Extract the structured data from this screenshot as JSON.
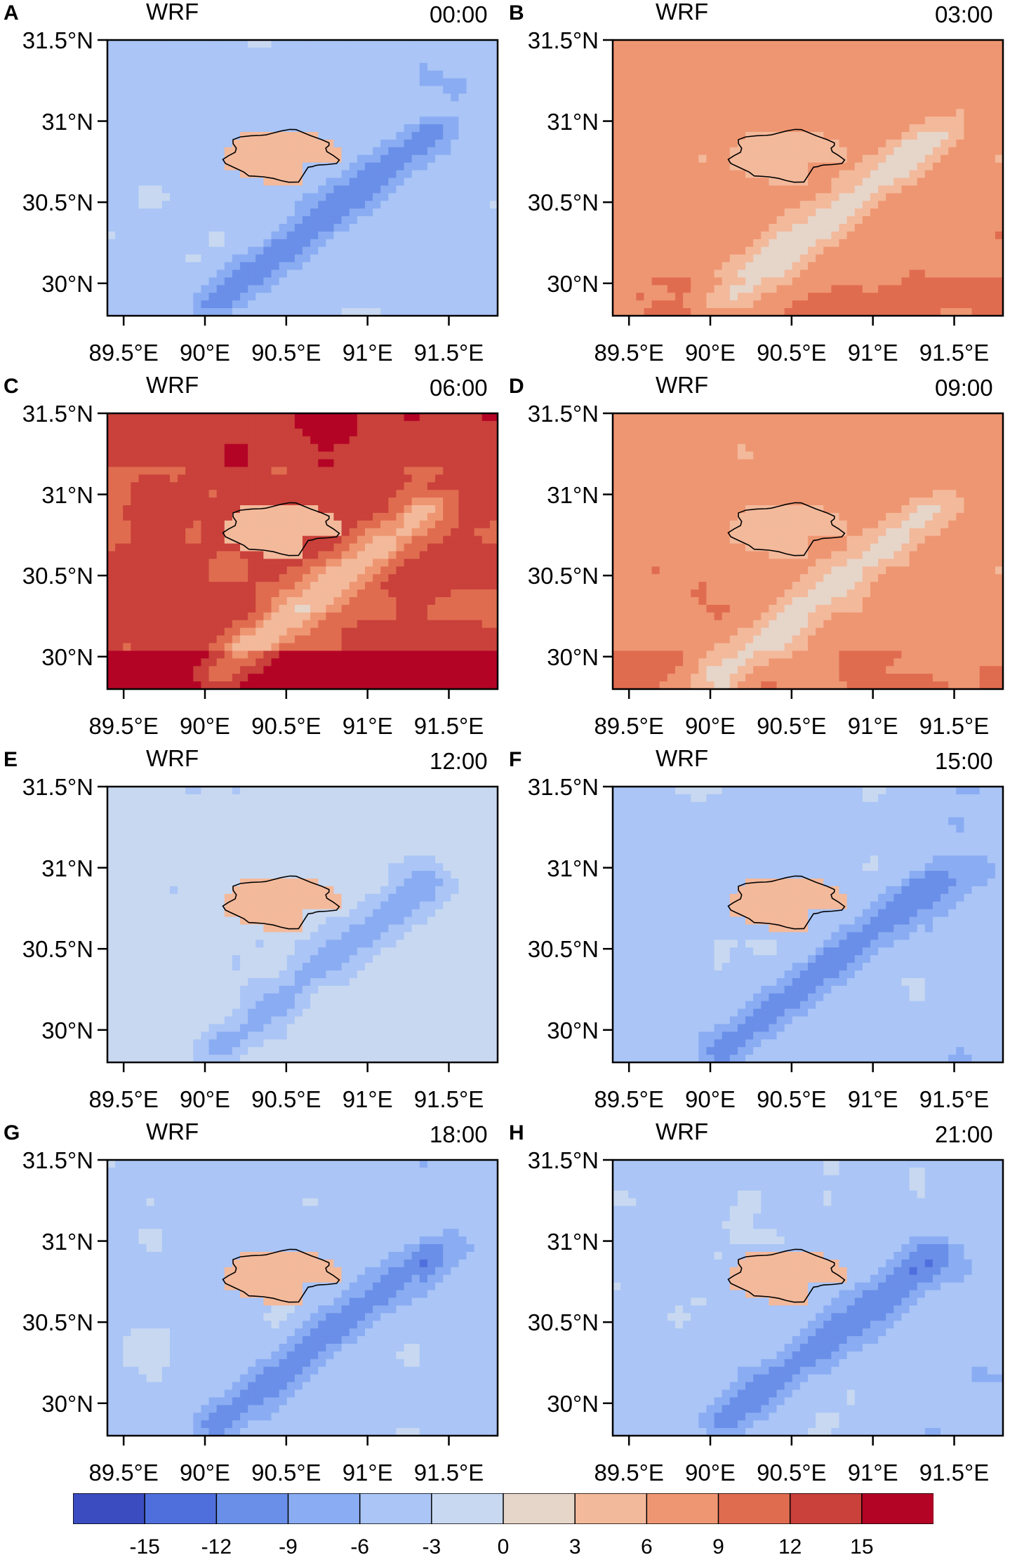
{
  "chart_data": {
    "type": "heatmap",
    "panels": [
      {
        "label": "A",
        "title": "WRF",
        "time": "00:00",
        "regime": "cool"
      },
      {
        "label": "B",
        "title": "WRF",
        "time": "03:00",
        "regime": "warm"
      },
      {
        "label": "C",
        "title": "WRF",
        "time": "06:00",
        "regime": "hot"
      },
      {
        "label": "D",
        "title": "WRF",
        "time": "09:00",
        "regime": "warm"
      },
      {
        "label": "E",
        "title": "WRF",
        "time": "12:00",
        "regime": "mild"
      },
      {
        "label": "F",
        "title": "WRF",
        "time": "15:00",
        "regime": "cool"
      },
      {
        "label": "G",
        "title": "WRF",
        "time": "18:00",
        "regime": "cool"
      },
      {
        "label": "H",
        "title": "WRF",
        "time": "21:00",
        "regime": "cool"
      }
    ],
    "x_ticks": [
      89.5,
      90.0,
      90.5,
      91.0,
      91.5
    ],
    "x_tick_labels": [
      "89.5°E",
      "90°E",
      "90.5°E",
      "91°E",
      "91.5°E"
    ],
    "y_ticks": [
      30.0,
      30.5,
      31.0,
      31.5
    ],
    "y_tick_labels": [
      "30°N",
      "30.5°N",
      "31°N",
      "31.5°N"
    ],
    "xlim": [
      89.4,
      91.8
    ],
    "ylim": [
      29.8,
      31.5
    ],
    "colorbar": {
      "ticks": [
        -15,
        -12,
        -9,
        -6,
        -3,
        0,
        3,
        6,
        9,
        12,
        15
      ],
      "tick_labels": [
        "-15",
        "-12",
        "-9",
        "-6",
        "-3",
        "0",
        "3",
        "6",
        "9",
        "12",
        "15"
      ],
      "colors": [
        "#3b4cc0",
        "#4f6fdc",
        "#6a8fe8",
        "#8aacf2",
        "#aac5f6",
        "#c8d8f0",
        "#e6d5c9",
        "#f3b99b",
        "#ee9672",
        "#e06c50",
        "#c9413a",
        "#b40426"
      ]
    }
  }
}
